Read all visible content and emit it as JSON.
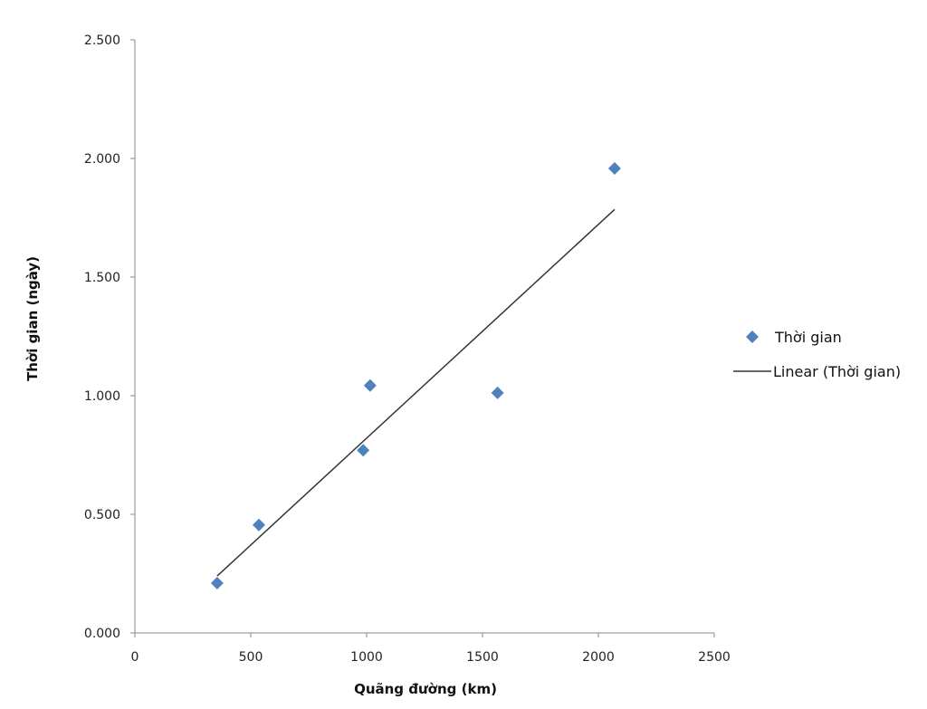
{
  "chart_data": {
    "type": "scatter",
    "xlabel": "Quãng đường  (km)",
    "ylabel": "Thời gian  (ngày)",
    "xlim": [
      0,
      2500
    ],
    "ylim": [
      0,
      2.5
    ],
    "xticks": [
      0,
      500,
      1000,
      1500,
      2000,
      2500
    ],
    "xtick_labels": [
      "0",
      "500",
      "1000",
      "1500",
      "2000",
      "2500"
    ],
    "yticks": [
      0,
      0.5,
      1.0,
      1.5,
      2.0,
      2.5
    ],
    "ytick_labels": [
      "0.000",
      "0.500",
      "1.000",
      "1.500",
      "2.000",
      "2.500"
    ],
    "grid": false,
    "legend_position": "right",
    "series": [
      {
        "name": "Thời gian",
        "color": "#4F81BD",
        "marker": "diamond",
        "points": [
          {
            "x": 355,
            "y": 0.21
          },
          {
            "x": 535,
            "y": 0.455
          },
          {
            "x": 985,
            "y": 0.77
          },
          {
            "x": 1015,
            "y": 1.043
          },
          {
            "x": 1565,
            "y": 1.012
          },
          {
            "x": 2070,
            "y": 1.958
          }
        ]
      }
    ],
    "trendline": {
      "name": "Linear (Thời gian)",
      "type": "linear",
      "color": "#333333",
      "x_range": [
        355,
        2070
      ],
      "y_range": [
        0.24,
        1.785
      ]
    }
  }
}
